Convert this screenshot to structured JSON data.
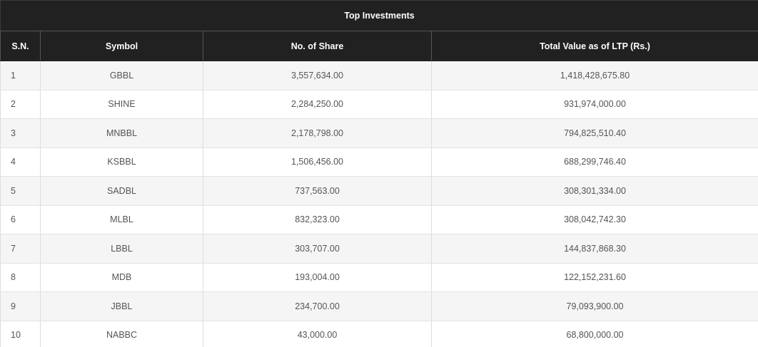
{
  "table": {
    "title": "Top Investments",
    "columns": {
      "sn": "S.N.",
      "symbol": "Symbol",
      "shares": "No. of Share",
      "value": "Total Value as of LTP (Rs.)"
    },
    "rows": [
      {
        "sn": "1",
        "symbol": "GBBL",
        "shares": "3,557,634.00",
        "value": "1,418,428,675.80"
      },
      {
        "sn": "2",
        "symbol": "SHINE",
        "shares": "2,284,250.00",
        "value": "931,974,000.00"
      },
      {
        "sn": "3",
        "symbol": "MNBBL",
        "shares": "2,178,798.00",
        "value": "794,825,510.40"
      },
      {
        "sn": "4",
        "symbol": "KSBBL",
        "shares": "1,506,456.00",
        "value": "688,299,746.40"
      },
      {
        "sn": "5",
        "symbol": "SADBL",
        "shares": "737,563.00",
        "value": "308,301,334.00"
      },
      {
        "sn": "6",
        "symbol": "MLBL",
        "shares": "832,323.00",
        "value": "308,042,742.30"
      },
      {
        "sn": "7",
        "symbol": "LBBL",
        "shares": "303,707.00",
        "value": "144,837,868.30"
      },
      {
        "sn": "8",
        "symbol": "MDB",
        "shares": "193,004.00",
        "value": "122,152,231.60"
      },
      {
        "sn": "9",
        "symbol": "JBBL",
        "shares": "234,700.00",
        "value": "79,093,900.00"
      },
      {
        "sn": "10",
        "symbol": "NABBC",
        "shares": "43,000.00",
        "value": "68,800,000.00"
      }
    ]
  }
}
